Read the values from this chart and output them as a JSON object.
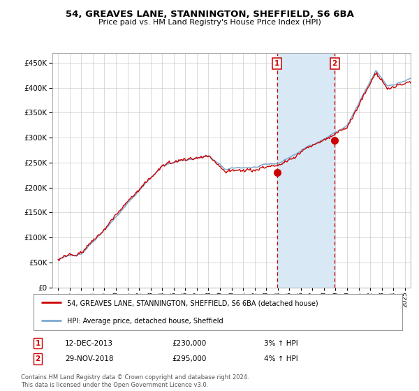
{
  "title_line1": "54, GREAVES LANE, STANNINGTON, SHEFFIELD, S6 6BA",
  "title_line2": "Price paid vs. HM Land Registry's House Price Index (HPI)",
  "background_color": "#ffffff",
  "plot_bg_color": "#ffffff",
  "grid_color": "#cccccc",
  "hpi_line_color": "#7aaad0",
  "price_line_color": "#cc0000",
  "shade_color": "#d8e8f5",
  "sale1_date_num": 2013.95,
  "sale2_date_num": 2018.92,
  "sale1_price": 230000,
  "sale2_price": 295000,
  "sale1_label": "12-DEC-2013",
  "sale2_label": "29-NOV-2018",
  "sale1_pct": "3% ↑ HPI",
  "sale2_pct": "4% ↑ HPI",
  "legend_line1": "54, GREAVES LANE, STANNINGTON, SHEFFIELD, S6 6BA (detached house)",
  "legend_line2": "HPI: Average price, detached house, Sheffield",
  "footnote": "Contains HM Land Registry data © Crown copyright and database right 2024.\nThis data is licensed under the Open Government Licence v3.0.",
  "ylim_min": 0,
  "ylim_max": 470000,
  "xlim_min": 1994.5,
  "xlim_max": 2025.5,
  "seed": 42
}
